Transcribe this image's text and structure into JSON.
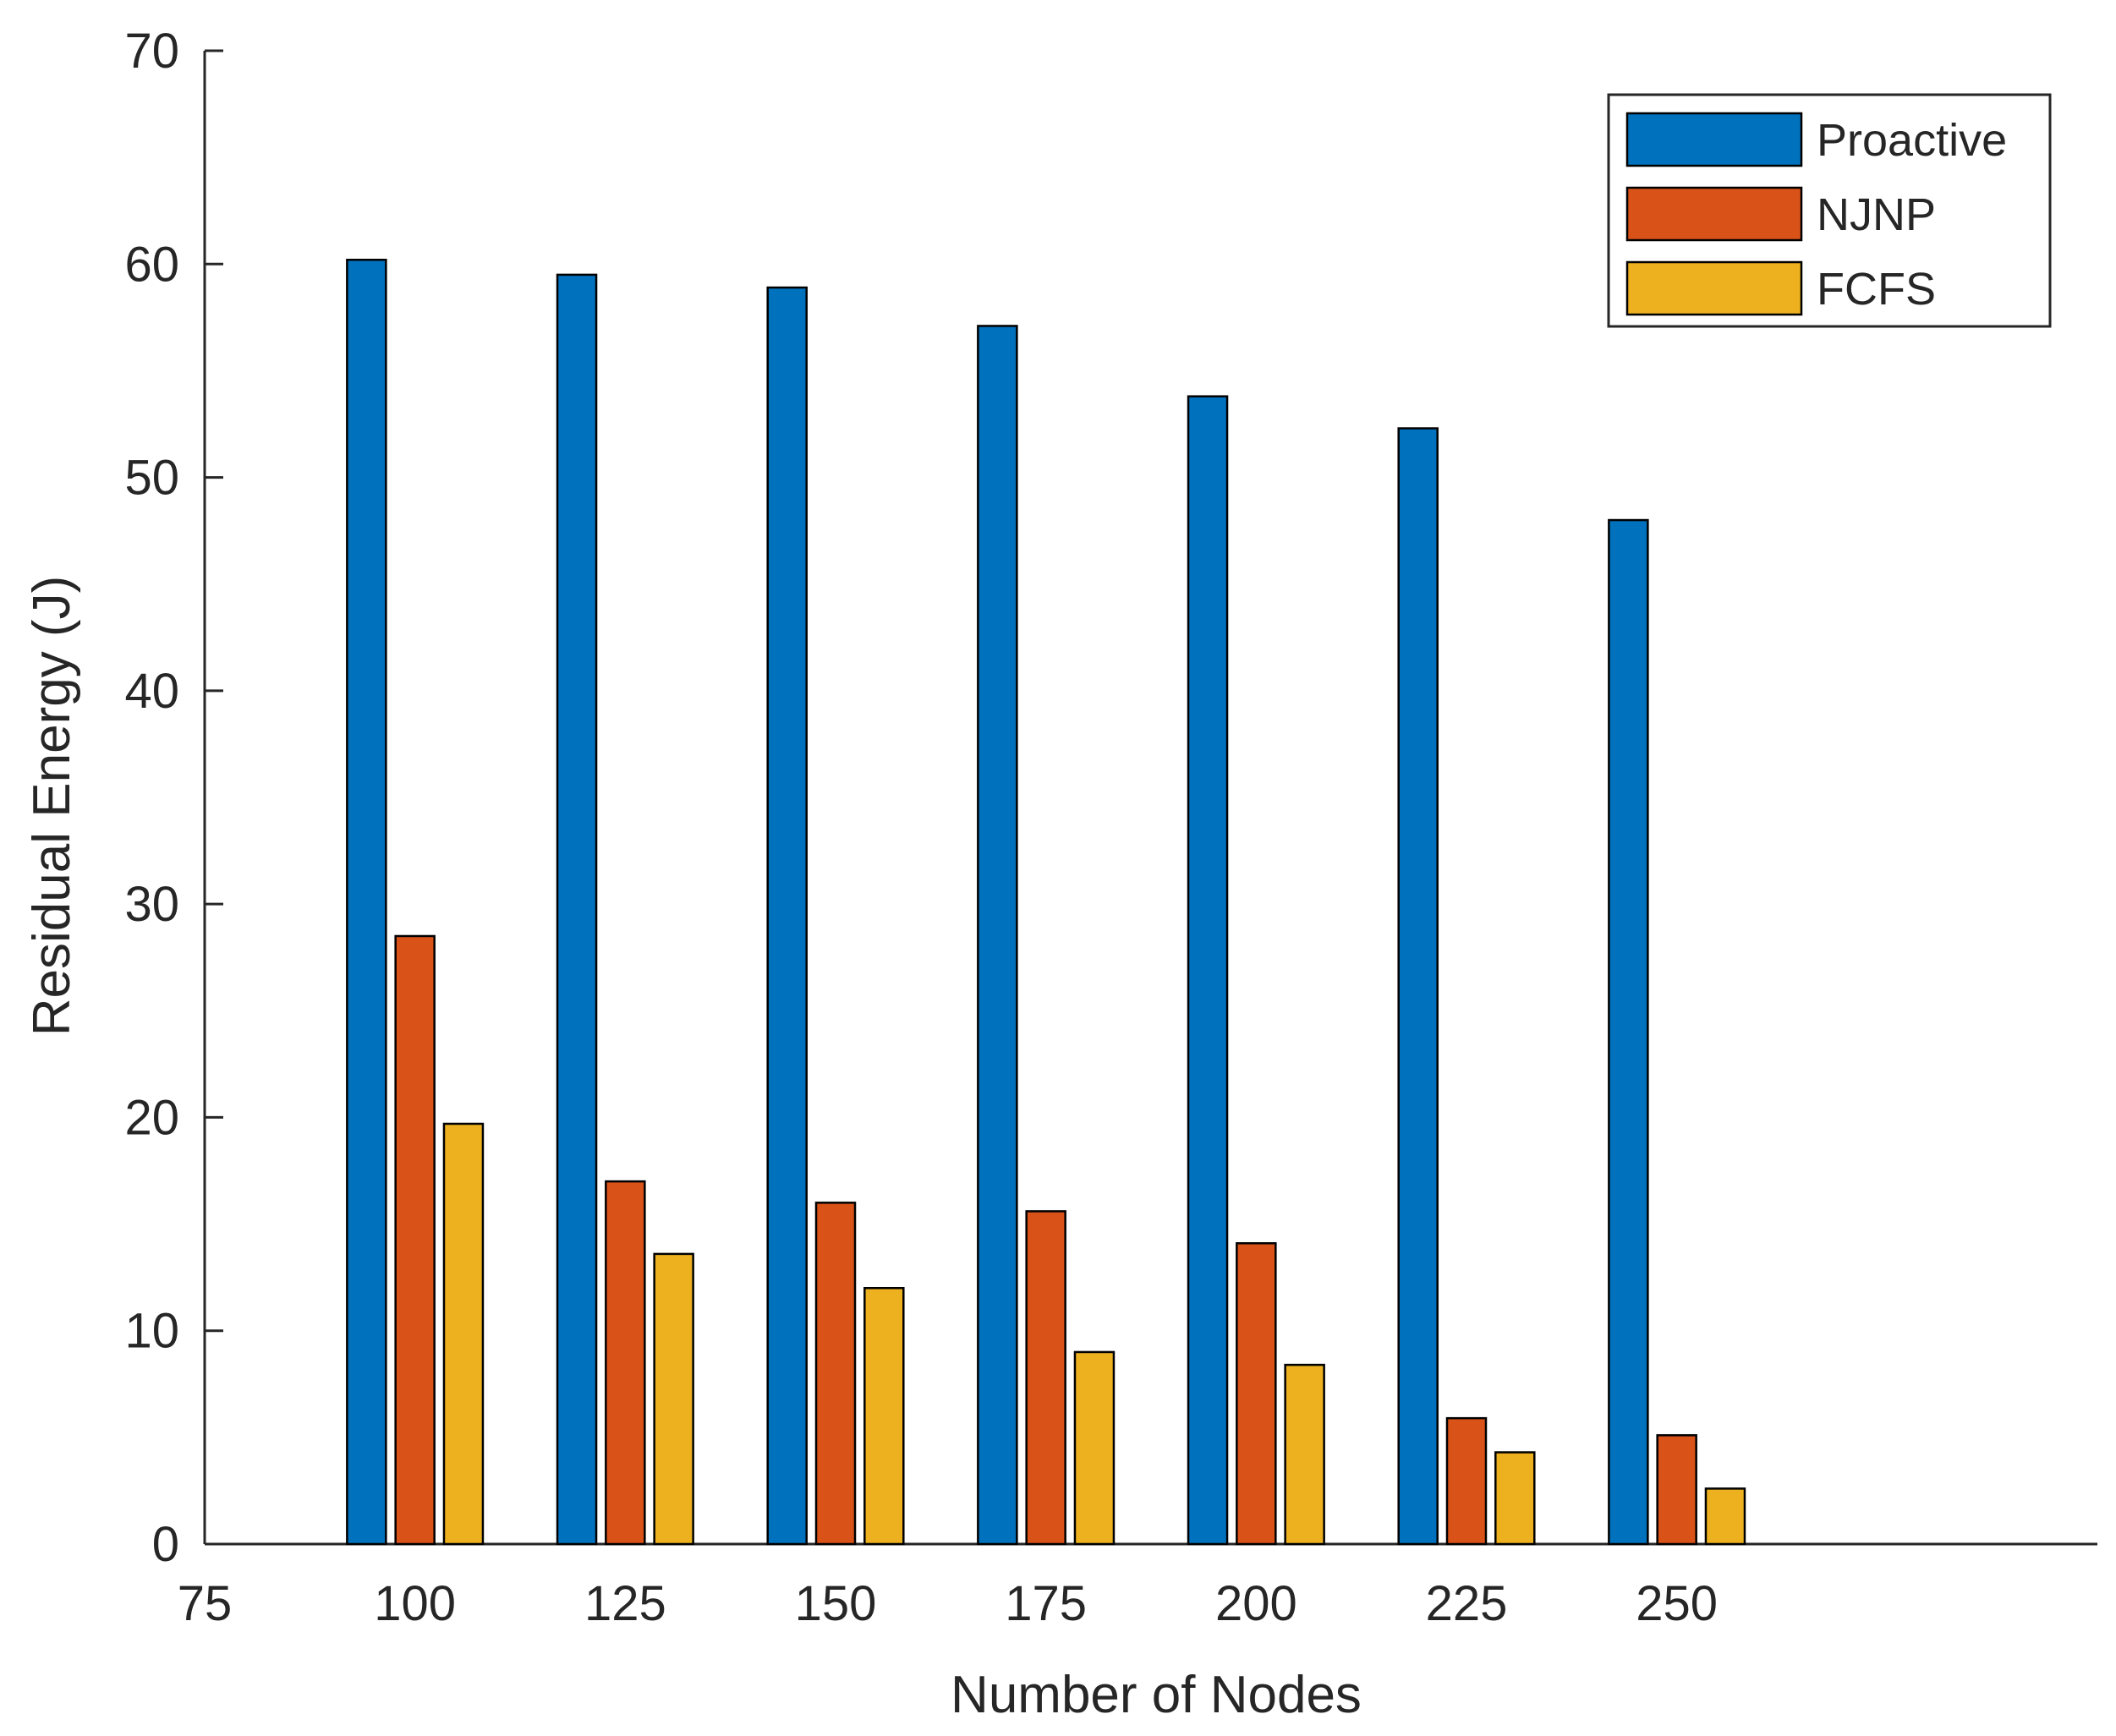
{
  "chart_data": {
    "type": "bar",
    "title": "",
    "xlabel": "Number of Nodes",
    "ylabel": "Residual Energy (J)",
    "xlim": [
      75,
      300
    ],
    "ylim": [
      0,
      70
    ],
    "x_tick_values": [
      75,
      100,
      125,
      150,
      175,
      200,
      225,
      250
    ],
    "x_tick_labels": [
      "75",
      "100",
      "125",
      "150",
      "175",
      "200",
      "225",
      "250"
    ],
    "y_tick_values": [
      0,
      10,
      20,
      30,
      40,
      50,
      60,
      70
    ],
    "y_tick_labels": [
      "0",
      "10",
      "20",
      "30",
      "40",
      "50",
      "60",
      "70"
    ],
    "categories": [
      100,
      125,
      150,
      175,
      200,
      225,
      250
    ],
    "series": [
      {
        "name": "Proactive",
        "color": "#0072BD",
        "values": [
          60.2,
          59.5,
          58.9,
          57.1,
          53.8,
          52.3,
          48.0
        ]
      },
      {
        "name": "NJNP",
        "color": "#D95319",
        "values": [
          28.5,
          17.0,
          16.0,
          15.6,
          14.1,
          5.9,
          5.1
        ]
      },
      {
        "name": "FCFS",
        "color": "#EDB120",
        "values": [
          19.7,
          13.6,
          12.0,
          9.0,
          8.4,
          4.3,
          2.6
        ]
      }
    ],
    "legend": {
      "position": "top-right",
      "entries": [
        "Proactive",
        "NJNP",
        "FCFS"
      ]
    },
    "grid": false
  }
}
